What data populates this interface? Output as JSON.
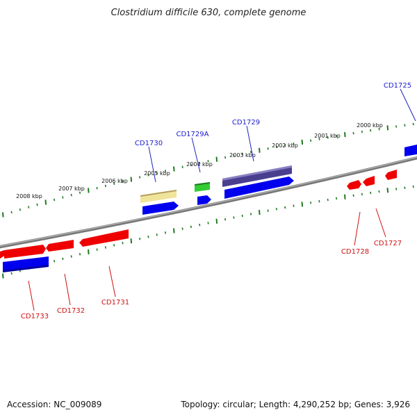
{
  "title": "Clostridium difficile 630, complete genome",
  "footer": {
    "accession": "Accession: NC_009089",
    "summary": "Topology: circular; Length: 4,290,252 bp; Genes: 3,926"
  },
  "scale_labels": [
    "2008 kbp",
    "2007 kbp",
    "2006 kbp",
    "2005 kbp",
    "2004 kbp",
    "2003 kbp",
    "2002 kbp",
    "2001 kbp",
    "2000 kbp"
  ],
  "colors": {
    "backbone": "#8a8a8a",
    "tick": "#1f7a1f",
    "plus_strand_gene": "#0000ee",
    "minus_strand_gene": "#ee0000",
    "highlight_pale": "#f0e39a",
    "highlight_green": "#33cc33",
    "highlight_purple": "#4a3f8f"
  },
  "gene_labels": {
    "top": [
      "CD1730",
      "CD1729A",
      "CD1729",
      "CD1725"
    ],
    "bottom": [
      "CD1733",
      "CD1732",
      "CD1731",
      "CD1728",
      "CD1727"
    ]
  }
}
